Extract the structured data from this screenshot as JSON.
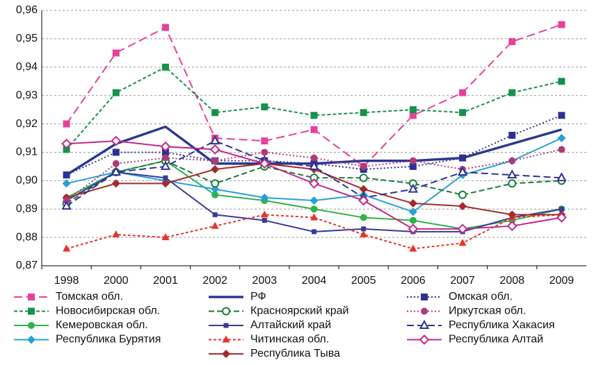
{
  "chart_data": {
    "type": "line",
    "categories": [
      "1998",
      "2000",
      "2001",
      "2002",
      "2003",
      "2004",
      "2005",
      "2006",
      "2007",
      "2008",
      "2009"
    ],
    "ylim": [
      0.87,
      0.96
    ],
    "yticks": [
      {
        "value": 0.87,
        "label": "0,87"
      },
      {
        "value": 0.88,
        "label": "0,88"
      },
      {
        "value": 0.89,
        "label": "0,89"
      },
      {
        "value": 0.9,
        "label": "0,90"
      },
      {
        "value": 0.91,
        "label": "0,91"
      },
      {
        "value": 0.92,
        "label": "0,92"
      },
      {
        "value": 0.93,
        "label": "0,93"
      },
      {
        "value": 0.94,
        "label": "0,94"
      },
      {
        "value": 0.95,
        "label": "0,95"
      },
      {
        "value": 0.96,
        "label": "0,96"
      }
    ],
    "grid": true,
    "series": [
      {
        "name": "Томская обл.",
        "color": "#e8409a",
        "dash": "12 6",
        "marker": "square",
        "values": [
          0.92,
          0.945,
          0.954,
          0.915,
          0.914,
          0.918,
          0.905,
          0.923,
          0.931,
          0.949,
          0.955
        ]
      },
      {
        "name": "Новосибирская обл.",
        "color": "#16924a",
        "dash": "5 3",
        "marker": "square",
        "values": [
          0.911,
          0.931,
          0.94,
          0.924,
          0.926,
          0.923,
          0.924,
          0.925,
          0.924,
          0.931,
          0.935
        ]
      },
      {
        "name": "Кемеровская обл.",
        "color": "#2db34a",
        "dash": "",
        "marker": "circle",
        "values": [
          0.894,
          0.903,
          0.907,
          0.895,
          0.893,
          0.89,
          0.887,
          0.886,
          0.883,
          0.886,
          0.89
        ]
      },
      {
        "name": "Республика Бурятия",
        "color": "#2a9fd6",
        "dash": "",
        "marker": "diamond",
        "values": [
          0.899,
          0.903,
          0.9,
          0.897,
          0.894,
          0.893,
          0.895,
          0.889,
          0.902,
          0.907,
          0.915
        ]
      },
      {
        "name": "РФ",
        "color": "#2b3990",
        "dash": "",
        "marker": "none",
        "values": [
          0.902,
          0.913,
          0.919,
          0.906,
          0.906,
          0.906,
          0.907,
          0.907,
          0.908,
          0.913,
          0.918
        ]
      },
      {
        "name": "Красноярский край",
        "color": "#1a7a3a",
        "dash": "8 4",
        "marker": "hollow-circle",
        "values": [
          0.892,
          0.903,
          0.907,
          0.899,
          0.905,
          0.901,
          0.901,
          0.899,
          0.895,
          0.899,
          0.9
        ]
      },
      {
        "name": "Алтайский край",
        "color": "#3a3a9a",
        "dash": "",
        "marker": "small-square",
        "values": [
          0.893,
          0.903,
          0.901,
          0.888,
          0.886,
          0.882,
          0.883,
          0.882,
          0.882,
          0.887,
          0.89
        ]
      },
      {
        "name": "Читинская обл.",
        "color": "#e8332a",
        "dash": "4 3",
        "marker": "triangle",
        "values": [
          0.876,
          0.881,
          0.88,
          0.884,
          0.888,
          0.887,
          0.881,
          0.876,
          0.878,
          0.887,
          0.888
        ]
      },
      {
        "name": "Республика Тыва",
        "color": "#a52a2a",
        "dash": "",
        "marker": "diamond",
        "values": [
          0.894,
          0.899,
          0.899,
          0.904,
          0.906,
          0.904,
          0.897,
          0.892,
          0.891,
          0.888,
          0.888
        ]
      },
      {
        "name": "Омская обл.",
        "color": "#2e3192",
        "dash": "2 3",
        "marker": "square",
        "values": [
          0.902,
          0.91,
          0.91,
          0.907,
          0.907,
          0.906,
          0.904,
          0.905,
          0.908,
          0.916,
          0.923
        ]
      },
      {
        "name": "Иркутская обл.",
        "color": "#b03a7a",
        "dash": "2 3",
        "marker": "circle",
        "values": [
          0.893,
          0.906,
          0.908,
          0.907,
          0.91,
          0.908,
          0.905,
          0.907,
          0.904,
          0.907,
          0.911
        ]
      },
      {
        "name": "Республика Хакасия",
        "color": "#2e3192",
        "dash": "10 5",
        "marker": "hollow-triangle",
        "values": [
          0.891,
          0.903,
          0.905,
          0.914,
          0.907,
          0.905,
          0.894,
          0.897,
          0.903,
          0.902,
          0.901
        ]
      },
      {
        "name": "Республика Алтай",
        "color": "#c1288e",
        "dash": "",
        "marker": "hollow-diamond",
        "values": [
          0.913,
          0.914,
          0.912,
          0.911,
          0.906,
          0.899,
          0.893,
          0.883,
          0.883,
          0.884,
          0.887
        ]
      }
    ]
  }
}
